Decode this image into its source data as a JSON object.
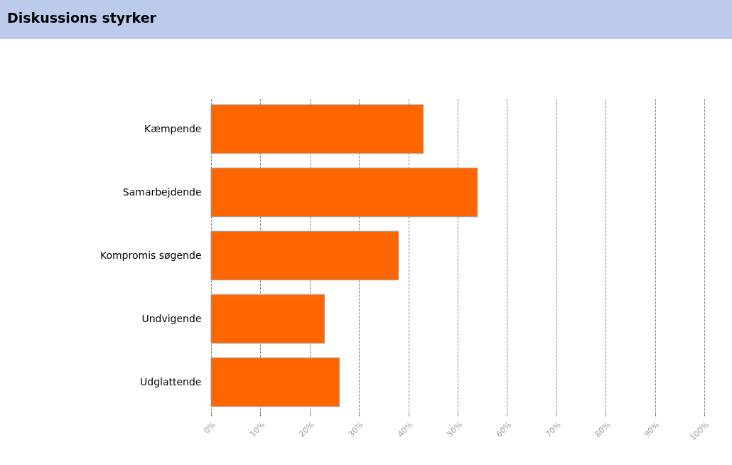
{
  "chart_data": {
    "type": "bar",
    "orientation": "horizontal",
    "title": "Diskussions styrker",
    "categories": [
      "Kæmpende",
      "Samarbejdende",
      "Kompromis søgende",
      "Undvigende",
      "Udglattende"
    ],
    "values": [
      43,
      54,
      38,
      23,
      26
    ],
    "color": "#ff6600",
    "xlim": [
      0,
      100
    ],
    "xticks": [
      {
        "value": 0,
        "label": "0%"
      },
      {
        "value": 10,
        "label": "10%"
      },
      {
        "value": 20,
        "label": "20%"
      },
      {
        "value": 30,
        "label": "30%"
      },
      {
        "value": 40,
        "label": "40%"
      },
      {
        "value": 50,
        "label": "50%"
      },
      {
        "value": 60,
        "label": "60%"
      },
      {
        "value": 70,
        "label": "70%"
      },
      {
        "value": 80,
        "label": "80%"
      },
      {
        "value": 90,
        "label": "90%"
      },
      {
        "value": 100,
        "label": "100%"
      }
    ],
    "grid": "x"
  }
}
